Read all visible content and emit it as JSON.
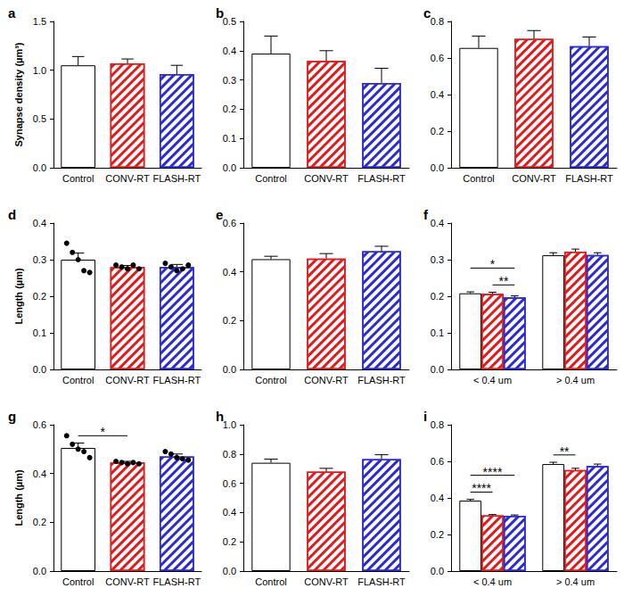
{
  "chart_data": [
    {
      "type": "bar",
      "title": "a",
      "ylabel": "Synapse density (µm³)",
      "categories": [
        "Control",
        "CONV-RT",
        "FLASH-RT"
      ],
      "values": [
        1.05,
        1.07,
        0.96
      ],
      "errors": [
        0.09,
        0.045,
        0.09
      ],
      "colors": [
        "#ffffff",
        "#e31a1c",
        "#2a2ad6"
      ],
      "ylim": [
        0,
        1.5
      ],
      "yticks": [
        {
          "value": 0,
          "label": "0.0"
        },
        0.5,
        {
          "value": 1,
          "label": "1.0"
        },
        1.5
      ]
    },
    {
      "type": "bar",
      "title": "b",
      "categories": [
        "Control",
        "CONV-RT",
        "FLASH-RT"
      ],
      "values": [
        0.39,
        0.365,
        0.29
      ],
      "errors": [
        0.06,
        0.035,
        0.05
      ],
      "colors": [
        "#ffffff",
        "#e31a1c",
        "#2a2ad6"
      ],
      "ylim": [
        0,
        0.5
      ],
      "yticks": [
        {
          "value": 0,
          "label": "0.0"
        },
        0.1,
        0.2,
        0.3,
        0.4,
        0.5
      ]
    },
    {
      "type": "bar",
      "title": "c",
      "categories": [
        "Control",
        "CONV-RT",
        "FLASH-RT"
      ],
      "values": [
        0.655,
        0.705,
        0.665
      ],
      "errors": [
        0.065,
        0.045,
        0.05
      ],
      "colors": [
        "#ffffff",
        "#e31a1c",
        "#2a2ad6"
      ],
      "ylim": [
        0,
        0.8
      ],
      "yticks": [
        {
          "value": 0,
          "label": "0.0"
        },
        0.2,
        0.4,
        0.6,
        0.8
      ]
    },
    {
      "type": "bar",
      "title": "d",
      "ylabel": "Length (µm)",
      "categories": [
        "Control",
        "CONV-RT",
        "FLASH-RT"
      ],
      "values": [
        0.3,
        0.28,
        0.28
      ],
      "errors": [
        0.018,
        0.004,
        0.007
      ],
      "points": [
        [
          0.345,
          0.32,
          0.3,
          0.27,
          0.265
        ],
        [
          0.285,
          0.28,
          0.275,
          0.285,
          0.275
        ],
        [
          0.29,
          0.28,
          0.27,
          0.275,
          0.285
        ]
      ],
      "colors": [
        "#ffffff",
        "#e31a1c",
        "#2a2ad6"
      ],
      "ylim": [
        0,
        0.4
      ],
      "yticks": [
        {
          "value": 0,
          "label": "0.0"
        },
        0.1,
        0.2,
        0.3,
        0.4
      ]
    },
    {
      "type": "bar",
      "title": "e",
      "categories": [
        "Control",
        "CONV-RT",
        "FLASH-RT"
      ],
      "values": [
        0.452,
        0.455,
        0.485
      ],
      "errors": [
        0.012,
        0.02,
        0.02
      ],
      "colors": [
        "#ffffff",
        "#e31a1c",
        "#2a2ad6"
      ],
      "ylim": [
        0,
        0.6
      ],
      "yticks": [
        {
          "value": 0,
          "label": "0.0"
        },
        0.2,
        0.4,
        0.6
      ]
    },
    {
      "type": "bar",
      "title": "f",
      "categories": [
        "< 0.4 um",
        "> 0.4 um"
      ],
      "series": [
        {
          "color": "#ffffff",
          "values": [
            0.208,
            0.312
          ],
          "errors": [
            0.004,
            0.007
          ]
        },
        {
          "color": "#e31a1c",
          "values": [
            0.207,
            0.322
          ],
          "errors": [
            0.004,
            0.007
          ]
        },
        {
          "color": "#2a2ad6",
          "values": [
            0.197,
            0.313
          ],
          "errors": [
            0.004,
            0.006
          ]
        }
      ],
      "annotations": [
        {
          "text": "**",
          "category": "< 0.4 um",
          "from": 1,
          "to": 2
        },
        {
          "text": "*",
          "category": "< 0.4 um",
          "from": 0,
          "to": 2
        }
      ],
      "ylim": [
        0,
        0.4
      ],
      "yticks": [
        {
          "value": 0,
          "label": "0.0"
        },
        0.1,
        0.2,
        0.3,
        0.4
      ]
    },
    {
      "type": "bar",
      "title": "g",
      "ylabel": "Length (µm)",
      "categories": [
        "Control",
        "CONV-RT",
        "FLASH-RT"
      ],
      "values": [
        0.505,
        0.445,
        0.47
      ],
      "errors": [
        0.02,
        0.005,
        0.01
      ],
      "points": [
        [
          0.555,
          0.52,
          0.5,
          0.49,
          0.465
        ],
        [
          0.45,
          0.445,
          0.44,
          0.445,
          0.44
        ],
        [
          0.49,
          0.48,
          0.465,
          0.46,
          0.455
        ]
      ],
      "colors": [
        "#ffffff",
        "#e31a1c",
        "#2a2ad6"
      ],
      "annotations": [
        {
          "text": "*",
          "from": 0,
          "to": 1
        }
      ],
      "ylim": [
        0,
        0.6
      ],
      "yticks": [
        {
          "value": 0,
          "label": "0.0"
        },
        0.2,
        0.4,
        0.6
      ]
    },
    {
      "type": "bar",
      "title": "h",
      "categories": [
        "Control",
        "CONV-RT",
        "FLASH-RT"
      ],
      "values": [
        0.74,
        0.68,
        0.765
      ],
      "errors": [
        0.025,
        0.022,
        0.03
      ],
      "colors": [
        "#ffffff",
        "#e31a1c",
        "#2a2ad6"
      ],
      "ylim": [
        0,
        1
      ],
      "yticks": [
        {
          "value": 0,
          "label": "0.0"
        },
        0.2,
        0.4,
        0.6,
        0.8,
        {
          "value": 1,
          "label": "1.0"
        }
      ]
    },
    {
      "type": "bar",
      "title": "i",
      "categories": [
        "< 0.4 um",
        "> 0.4 um"
      ],
      "series": [
        {
          "color": "#ffffff",
          "values": [
            0.385,
            0.585
          ],
          "errors": [
            0.007,
            0.01
          ]
        },
        {
          "color": "#e31a1c",
          "values": [
            0.305,
            0.552
          ],
          "errors": [
            0.004,
            0.01
          ]
        },
        {
          "color": "#2a2ad6",
          "values": [
            0.303,
            0.575
          ],
          "errors": [
            0.004,
            0.01
          ]
        }
      ],
      "annotations": [
        {
          "text": "****",
          "category": "< 0.4 um",
          "from": 0,
          "to": 1
        },
        {
          "text": "****",
          "category": "< 0.4 um",
          "from": 0,
          "to": 2
        },
        {
          "text": "**",
          "category": "> 0.4 um",
          "from": 0,
          "to": 1
        }
      ],
      "ylim": [
        0,
        0.8
      ],
      "yticks": [
        {
          "value": 0,
          "label": "0.0"
        },
        0.2,
        0.4,
        0.6,
        0.8
      ]
    }
  ]
}
